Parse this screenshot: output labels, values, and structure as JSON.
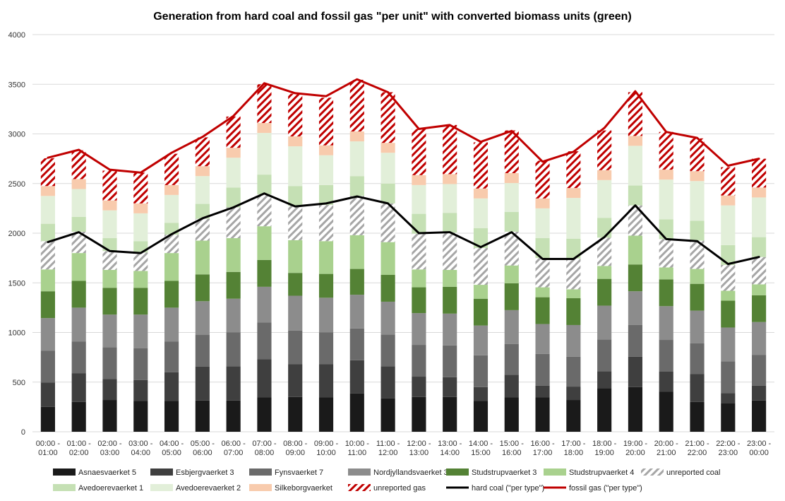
{
  "chart_data": {
    "type": "bar",
    "title": "Generation from hard coal and fossil gas \"per unit\" with converted biomass units (green)",
    "xlabel": "",
    "ylabel": "",
    "ylim": [
      0,
      4000
    ],
    "yticks": [
      0,
      500,
      1000,
      1500,
      2000,
      2500,
      3000,
      3500,
      4000
    ],
    "grid": true,
    "legend_position": "bottom",
    "categories": [
      [
        "00:00 -",
        "01:00"
      ],
      [
        "01:00 -",
        "02:00"
      ],
      [
        "02:00 -",
        "03:00"
      ],
      [
        "03:00 -",
        "04:00"
      ],
      [
        "04:00 -",
        "05:00"
      ],
      [
        "05:00 -",
        "06:00"
      ],
      [
        "06:00 -",
        "07:00"
      ],
      [
        "07:00 -",
        "08:00"
      ],
      [
        "08:00 -",
        "09:00"
      ],
      [
        "09:00 -",
        "10:00"
      ],
      [
        "10:00 -",
        "11:00"
      ],
      [
        "11:00 -",
        "12:00"
      ],
      [
        "12:00 -",
        "13:00"
      ],
      [
        "13:00 -",
        "14:00"
      ],
      [
        "14:00 -",
        "15:00"
      ],
      [
        "15:00 -",
        "16:00"
      ],
      [
        "16:00 -",
        "17:00"
      ],
      [
        "17:00 -",
        "18:00"
      ],
      [
        "18:00 -",
        "19:00"
      ],
      [
        "19:00 -",
        "20:00"
      ],
      [
        "20:00 -",
        "21:00"
      ],
      [
        "21:00 -",
        "22:00"
      ],
      [
        "22:00 -",
        "23:00"
      ],
      [
        "23:00 -",
        "00:00"
      ]
    ],
    "series": [
      {
        "name": "Asnaesvaerket 5",
        "kind": "bar",
        "color": "#1a1a1a",
        "values": [
          250,
          300,
          320,
          310,
          310,
          315,
          315,
          345,
          350,
          345,
          385,
          335,
          350,
          350,
          310,
          345,
          345,
          320,
          440,
          450,
          405,
          300,
          290,
          315
        ]
      },
      {
        "name": "Esbjergvaerket 3",
        "kind": "bar",
        "color": "#3f3f3f",
        "values": [
          245,
          290,
          210,
          210,
          290,
          340,
          345,
          385,
          330,
          335,
          335,
          325,
          205,
          200,
          140,
          230,
          120,
          135,
          170,
          305,
          200,
          280,
          100,
          150
        ]
      },
      {
        "name": "Fynsvaerket 7",
        "kind": "bar",
        "color": "#6a6a6a",
        "values": [
          320,
          320,
          320,
          320,
          310,
          320,
          340,
          370,
          340,
          320,
          320,
          320,
          320,
          320,
          320,
          310,
          320,
          300,
          320,
          320,
          320,
          310,
          320,
          310
        ]
      },
      {
        "name": "Nordjyllandsvaerket 3",
        "kind": "bar",
        "color": "#8c8c8c",
        "values": [
          330,
          340,
          330,
          340,
          340,
          340,
          340,
          360,
          350,
          350,
          340,
          330,
          320,
          320,
          300,
          340,
          300,
          320,
          340,
          340,
          340,
          330,
          340,
          330
        ]
      },
      {
        "name": "Studstrupvaerket 3",
        "kind": "bar",
        "color": "#548235",
        "values": [
          270,
          270,
          270,
          270,
          270,
          270,
          270,
          270,
          230,
          240,
          260,
          270,
          260,
          270,
          270,
          270,
          270,
          270,
          270,
          270,
          270,
          270,
          270,
          270
        ]
      },
      {
        "name": "Studstrupvaerket 4",
        "kind": "bar",
        "color": "#a9d18e",
        "values": [
          220,
          280,
          180,
          170,
          280,
          340,
          340,
          340,
          330,
          330,
          340,
          330,
          180,
          170,
          140,
          180,
          100,
          90,
          130,
          290,
          120,
          150,
          100,
          110
        ]
      },
      {
        "name": "unreported coal",
        "kind": "hatch",
        "color": "#a6a6a6",
        "values": [
          285,
          215,
          190,
          185,
          185,
          220,
          310,
          320,
          345,
          365,
          395,
          390,
          360,
          375,
          370,
          340,
          295,
          310,
          285,
          305,
          285,
          285,
          260,
          275
        ]
      },
      {
        "name": "Avedoerevaerket 1",
        "kind": "bar",
        "color": "#c5e0b4",
        "values": [
          175,
          150,
          130,
          115,
          120,
          150,
          200,
          200,
          200,
          200,
          200,
          200,
          200,
          200,
          200,
          200,
          200,
          200,
          200,
          200,
          200,
          200,
          200,
          200
        ]
      },
      {
        "name": "Avedoerevaerket 2",
        "kind": "bar",
        "color": "#e2efd9",
        "values": [
          280,
          280,
          280,
          280,
          280,
          280,
          300,
          420,
          400,
          300,
          350,
          310,
          290,
          290,
          300,
          290,
          300,
          410,
          380,
          400,
          400,
          400,
          400,
          400
        ]
      },
      {
        "name": "Silkeborgvaerket",
        "kind": "bar",
        "color": "#f8cbad",
        "values": [
          100,
          100,
          100,
          100,
          100,
          100,
          100,
          100,
          100,
          100,
          100,
          100,
          100,
          100,
          100,
          100,
          100,
          100,
          100,
          100,
          100,
          100,
          100,
          100
        ]
      },
      {
        "name": "unreported gas",
        "kind": "hatch",
        "color": "#c00000",
        "values": [
          280,
          290,
          300,
          310,
          315,
          290,
          315,
          390,
          430,
          480,
          520,
          510,
          465,
          495,
          465,
          430,
          380,
          370,
          400,
          440,
          380,
          330,
          285,
          290
        ]
      }
    ],
    "lines": [
      {
        "name": "hard coal (\"per type\")",
        "color": "#000000",
        "values": [
          1910,
          2010,
          1820,
          1800,
          1990,
          2150,
          2260,
          2400,
          2270,
          2300,
          2370,
          2300,
          2000,
          2010,
          1860,
          2010,
          1740,
          1740,
          1960,
          2280,
          1940,
          1920,
          1690,
          1760
        ]
      },
      {
        "name": "fossil gas (\"per type\")",
        "color": "#c00000",
        "values": [
          2760,
          2840,
          2640,
          2610,
          2810,
          2970,
          3180,
          3510,
          3410,
          3380,
          3550,
          3420,
          3050,
          3090,
          2920,
          3030,
          2720,
          2820,
          3060,
          3430,
          3020,
          2960,
          2680,
          2750
        ]
      }
    ],
    "legend": [
      "Asnaesvaerket 5",
      "Esbjergvaerket 3",
      "Fynsvaerket 7",
      "Nordjyllandsvaerket 3",
      "Studstrupvaerket 3",
      "Studstrupvaerket 4",
      "unreported coal",
      "Avedoerevaerket 1",
      "Avedoerevaerket 2",
      "Silkeborgvaerket",
      "unreported gas",
      "hard coal (\"per type\")",
      "fossil gas (\"per type\")"
    ]
  }
}
